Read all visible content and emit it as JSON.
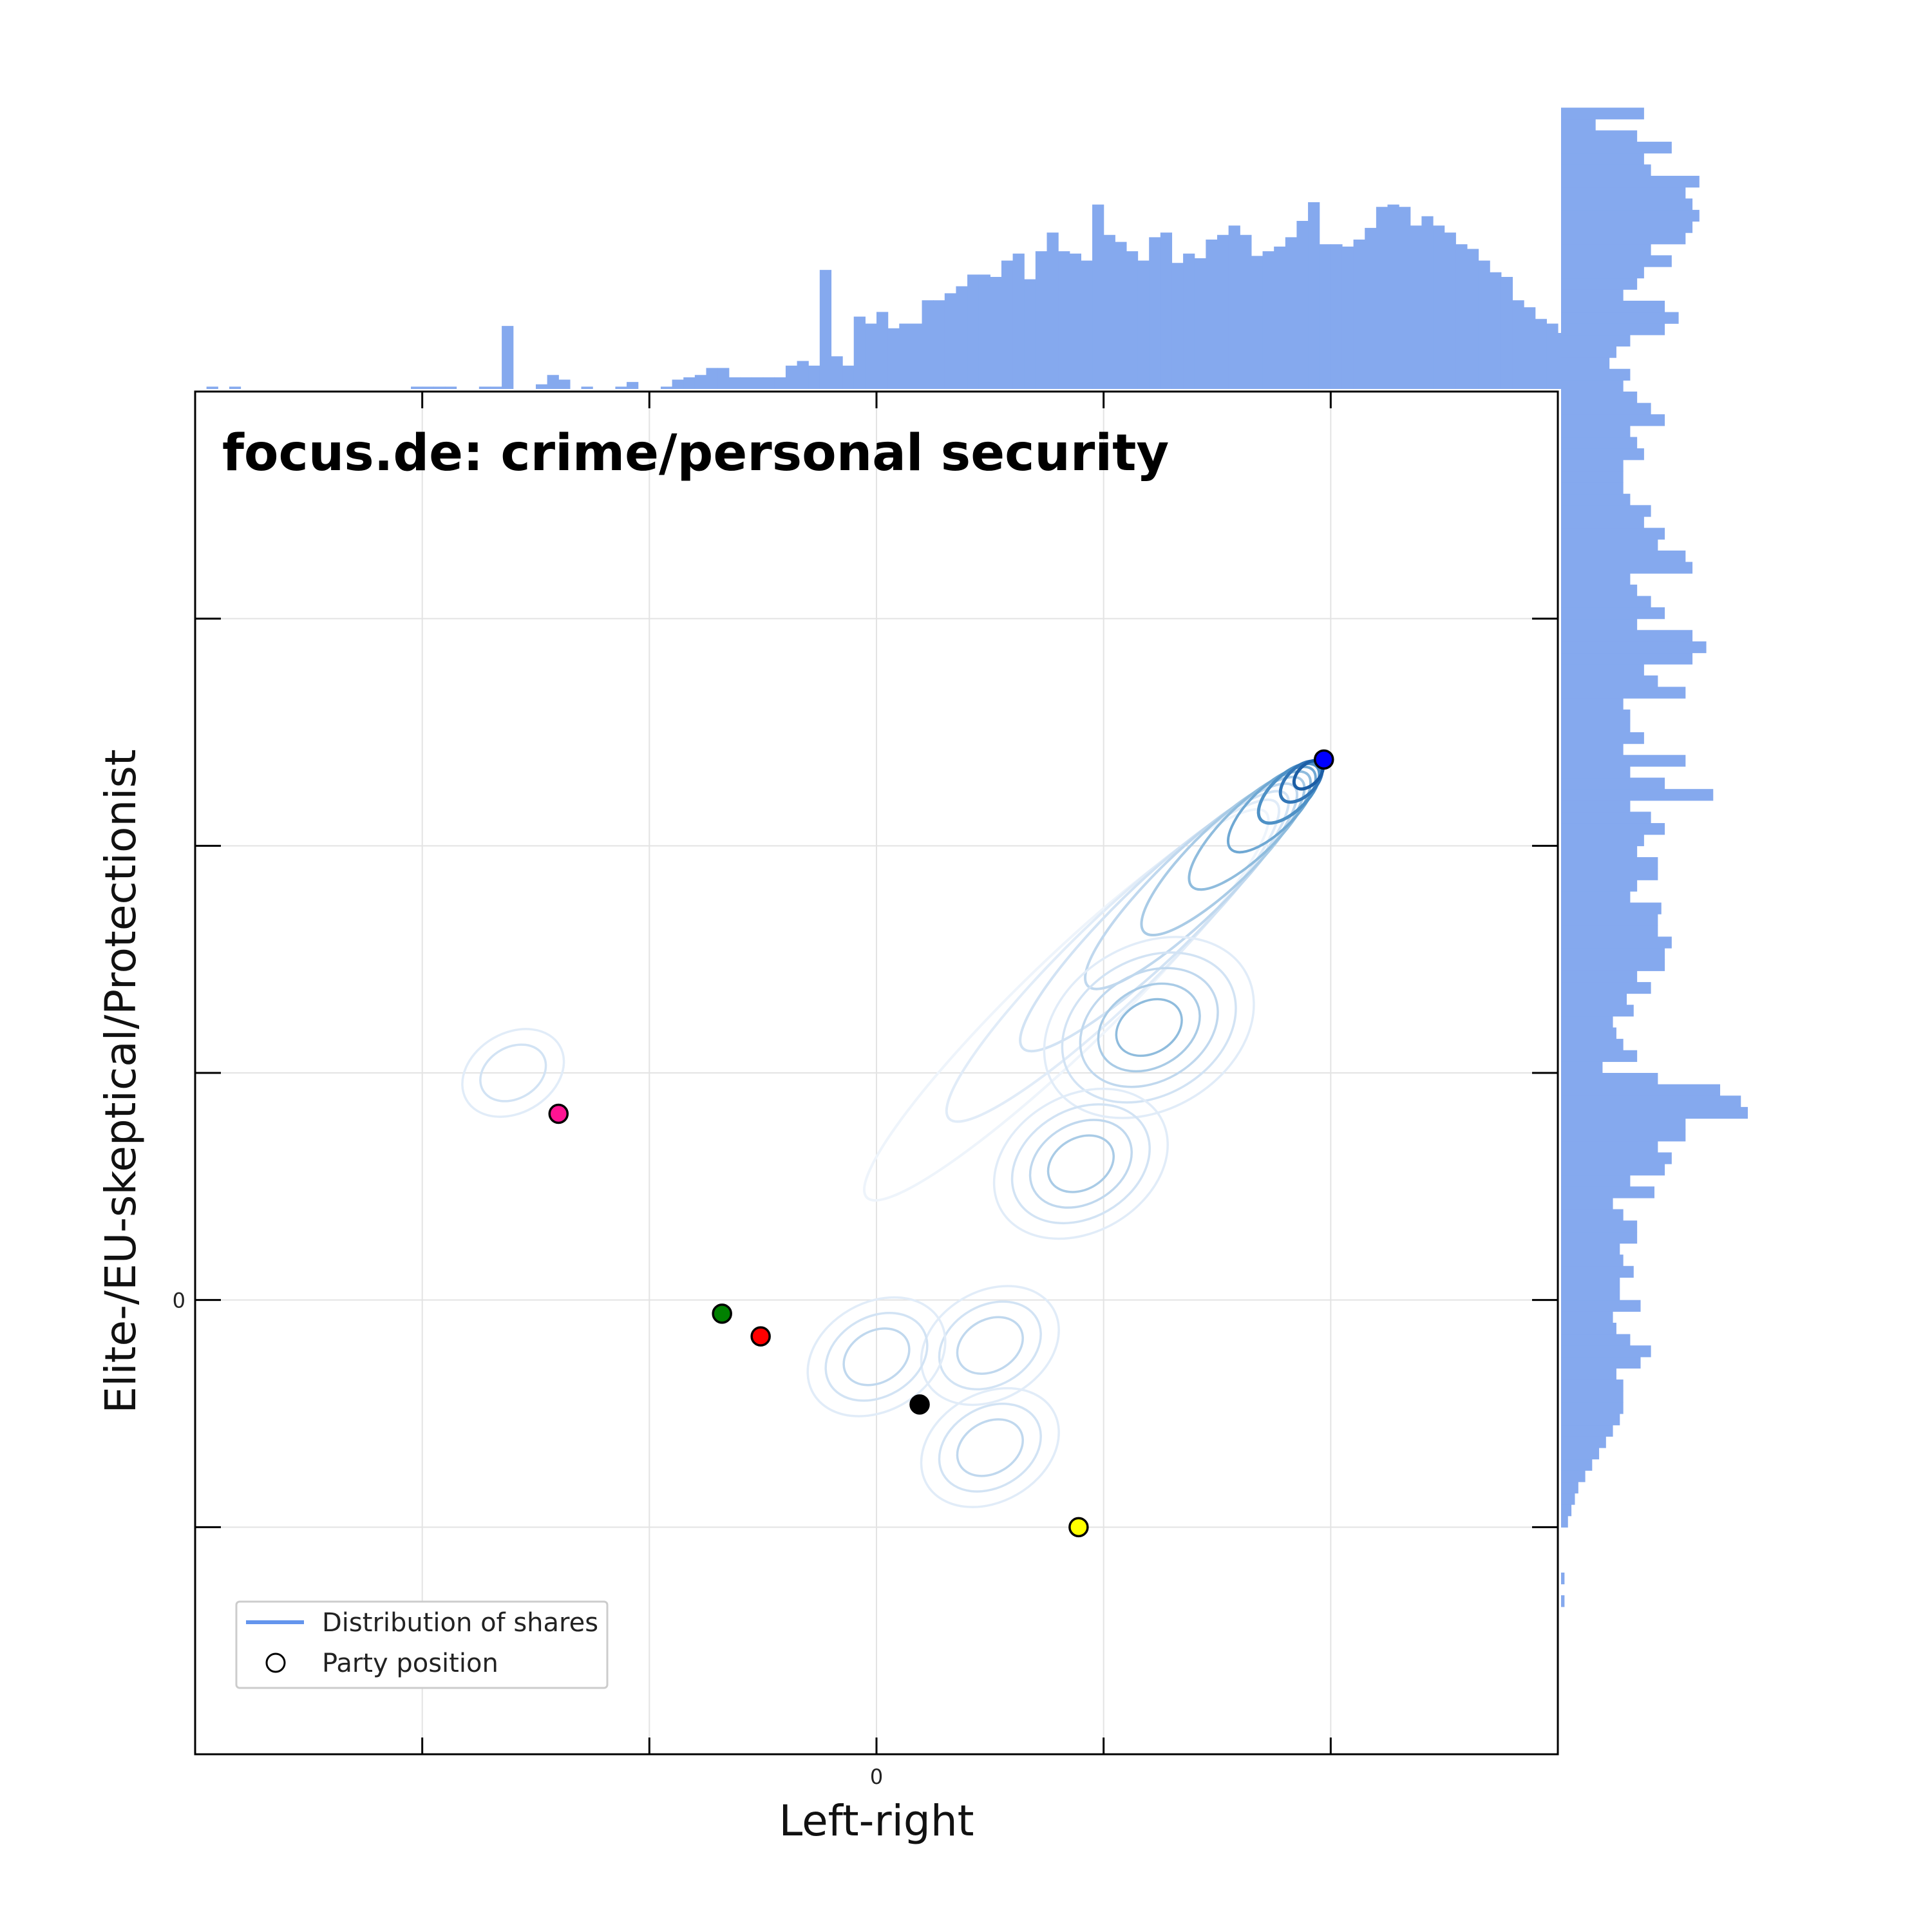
{
  "chart_data": {
    "type": "scatter",
    "title": "focus.de: crime/personal security",
    "xlabel": "Left-right",
    "ylabel": "Elite-/EU-skeptical/Protectionist",
    "xlim": [
      -3,
      3
    ],
    "ylim": [
      -2,
      4
    ],
    "x_ticks": [
      -3,
      -2,
      -1,
      0,
      1,
      2,
      3
    ],
    "y_ticks": [
      -2,
      -1,
      0,
      1,
      2,
      3,
      4
    ],
    "x_tick_labels": [
      {
        "value": 0,
        "label": "0"
      }
    ],
    "y_tick_labels": [
      {
        "value": 0,
        "label": "0"
      }
    ],
    "grid": true,
    "legend": {
      "location": "bottom-left",
      "entries": [
        {
          "label": "Distribution of shares",
          "marker": "line",
          "color": "#6495ED"
        },
        {
          "label": "Party position",
          "marker": "circle-outline",
          "color": "#000000"
        }
      ]
    },
    "party_positions": [
      {
        "color": "#FF1493",
        "x": -1.4,
        "y": 0.82
      },
      {
        "color": "#008000",
        "x": -0.68,
        "y": -0.06
      },
      {
        "color": "#FF0000",
        "x": -0.51,
        "y": -0.16
      },
      {
        "color": "#000000",
        "x": 0.19,
        "y": -0.46
      },
      {
        "color": "#FFFF00",
        "x": 0.89,
        "y": -1.0
      },
      {
        "color": "#0000FF",
        "x": 1.97,
        "y": 2.38
      }
    ],
    "density_contours": {
      "series": "Distribution of shares",
      "colormap": "Blues",
      "peak": [
        1.97,
        2.38
      ],
      "modes": [
        {
          "x": 1.85,
          "y": 2.35,
          "weight": 1.0
        },
        {
          "x": 1.2,
          "y": 1.2,
          "weight": 0.45
        },
        {
          "x": 0.9,
          "y": 0.6,
          "weight": 0.35
        },
        {
          "x": 0.5,
          "y": -0.2,
          "weight": 0.3
        },
        {
          "x": 0.0,
          "y": -0.25,
          "weight": 0.3
        },
        {
          "x": 0.5,
          "y": -0.65,
          "weight": 0.25
        },
        {
          "x": -1.6,
          "y": 1.0,
          "weight": 0.1
        }
      ]
    },
    "x_histogram": {
      "x_start": -3.0,
      "bin_width": 0.05,
      "values": [
        0,
        1,
        0,
        1,
        0,
        0,
        0,
        0,
        0,
        0,
        0,
        0,
        0,
        0,
        0,
        0,
        0,
        0,
        0,
        1,
        1,
        1,
        1,
        0,
        0,
        1,
        1,
        27,
        0,
        0,
        2,
        6,
        4,
        0,
        1,
        0,
        0,
        1,
        3,
        0,
        0,
        1,
        4,
        5,
        6,
        9,
        9,
        5,
        5,
        5,
        5,
        5,
        10,
        12,
        10,
        51,
        14,
        10,
        31,
        28,
        33,
        26,
        28,
        28,
        38,
        38,
        41,
        44,
        49,
        49,
        48,
        55,
        58,
        47,
        59,
        67,
        59,
        58,
        55,
        79,
        66,
        63,
        59,
        55,
        65,
        67,
        54,
        58,
        56,
        64,
        66,
        70,
        66,
        57,
        59,
        61,
        65,
        72,
        80,
        62,
        62,
        61,
        64,
        69,
        78,
        79,
        78,
        70,
        74,
        70,
        67,
        62,
        60,
        55,
        50,
        48,
        38,
        35,
        30,
        28,
        24,
        18,
        8
      ]
    },
    "y_histogram": {
      "y_start": -1.4,
      "bin_width": 0.05,
      "values": [
        0,
        1,
        0,
        1,
        0,
        0,
        0,
        0,
        2,
        3,
        4,
        5,
        7,
        9,
        11,
        13,
        15,
        17,
        18,
        18,
        18,
        16,
        23,
        26,
        20,
        16,
        15,
        23,
        17,
        17,
        21,
        18,
        17,
        22,
        22,
        18,
        15,
        27,
        20,
        30,
        32,
        28,
        36,
        36,
        54,
        52,
        46,
        28,
        12,
        22,
        18,
        16,
        15,
        21,
        19,
        26,
        22,
        30,
        30,
        32,
        28,
        28,
        29,
        20,
        22,
        28,
        28,
        22,
        24,
        30,
        26,
        20,
        44,
        30,
        20,
        36,
        18,
        24,
        20,
        20,
        18,
        36,
        28,
        24,
        38,
        42,
        38,
        22,
        30,
        26,
        22,
        20,
        38,
        36,
        28,
        30,
        24,
        26,
        20,
        18,
        18,
        18,
        24,
        22,
        20,
        30,
        26,
        22,
        18,
        20,
        14,
        16,
        20,
        30,
        34,
        30,
        18,
        22,
        24,
        32,
        26,
        36,
        38,
        40,
        38,
        36,
        40,
        26,
        24,
        32,
        22,
        10,
        24
      ]
    }
  }
}
